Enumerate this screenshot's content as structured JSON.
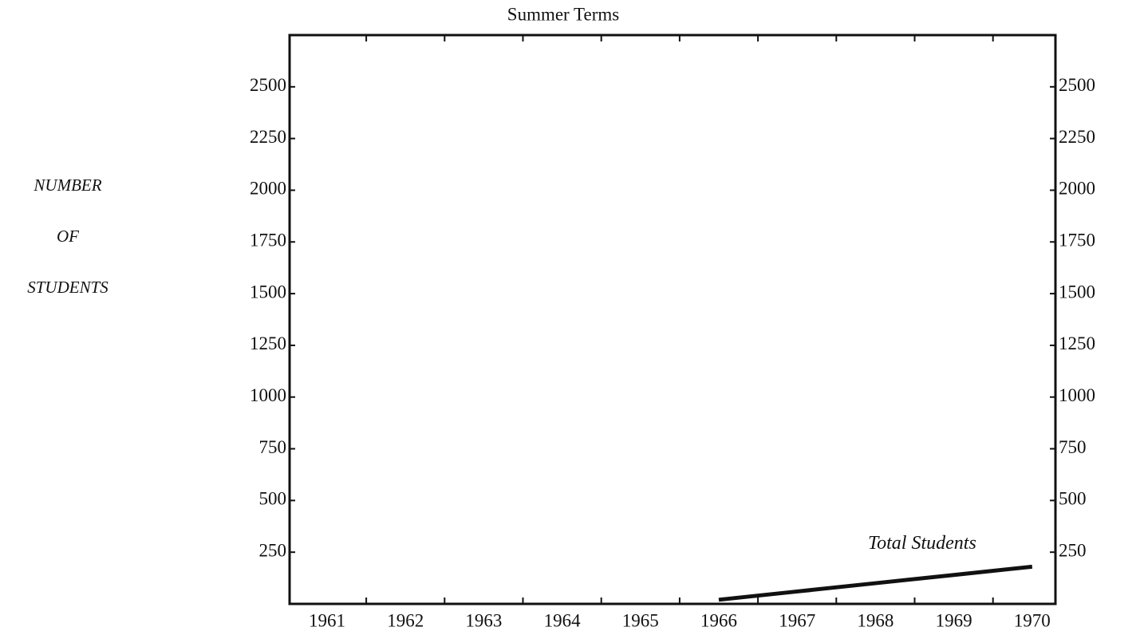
{
  "chart_data": {
    "type": "line",
    "title": "Summer Terms",
    "ylabel": [
      "NUMBER",
      "OF",
      "STUDENTS"
    ],
    "categories": [
      "1961",
      "1962",
      "1963",
      "1964",
      "1965",
      "1966",
      "1967",
      "1968",
      "1969",
      "1970"
    ],
    "series": [
      {
        "name": "Total Students",
        "color": "#111111",
        "values": [
          null,
          null,
          null,
          null,
          null,
          20,
          60,
          100,
          140,
          180
        ]
      }
    ],
    "ylim": [
      0,
      2750
    ],
    "yticks": [
      250,
      500,
      750,
      1000,
      1250,
      1500,
      1750,
      2000,
      2250,
      2500
    ],
    "y2lim": [
      0,
      2750
    ],
    "y2ticks": [
      250,
      500,
      750,
      1000,
      1250,
      1500,
      1750,
      2000,
      2250,
      2500
    ],
    "grid": false
  }
}
